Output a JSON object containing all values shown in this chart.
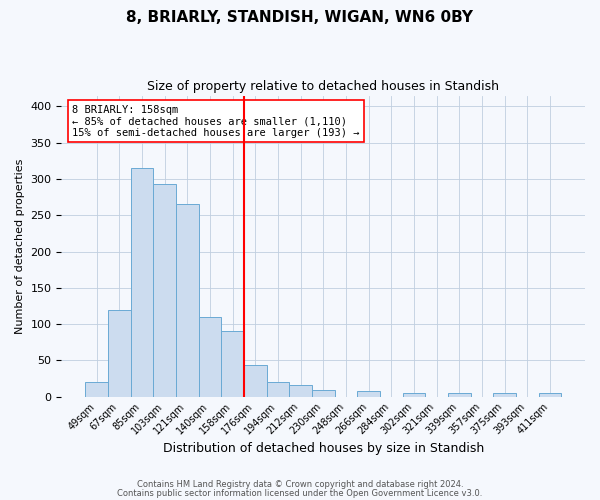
{
  "title": "8, BRIARLY, STANDISH, WIGAN, WN6 0BY",
  "subtitle": "Size of property relative to detached houses in Standish",
  "xlabel": "Distribution of detached houses by size in Standish",
  "ylabel": "Number of detached properties",
  "bar_labels": [
    "49sqm",
    "67sqm",
    "85sqm",
    "103sqm",
    "121sqm",
    "140sqm",
    "158sqm",
    "176sqm",
    "194sqm",
    "212sqm",
    "230sqm",
    "248sqm",
    "266sqm",
    "284sqm",
    "302sqm",
    "321sqm",
    "339sqm",
    "357sqm",
    "375sqm",
    "393sqm",
    "411sqm"
  ],
  "bar_values": [
    20,
    120,
    315,
    293,
    265,
    110,
    90,
    44,
    20,
    16,
    9,
    0,
    8,
    0,
    5,
    0,
    5,
    0,
    5,
    0,
    5
  ],
  "bar_color": "#ccdcef",
  "bar_edge_color": "#6aaad4",
  "vline_position": 6.5,
  "vline_color": "red",
  "annotation_text": "8 BRIARLY: 158sqm\n← 85% of detached houses are smaller (1,110)\n15% of semi-detached houses are larger (193) →",
  "annotation_box_color": "white",
  "annotation_box_edge_color": "red",
  "ylim": [
    0,
    415
  ],
  "yticks": [
    0,
    50,
    100,
    150,
    200,
    250,
    300,
    350,
    400
  ],
  "footer1": "Contains HM Land Registry data © Crown copyright and database right 2024.",
  "footer2": "Contains public sector information licensed under the Open Government Licence v3.0.",
  "bg_color": "#f5f8fd",
  "title_fontsize": 11,
  "subtitle_fontsize": 9,
  "xlabel_fontsize": 9,
  "ylabel_fontsize": 8
}
